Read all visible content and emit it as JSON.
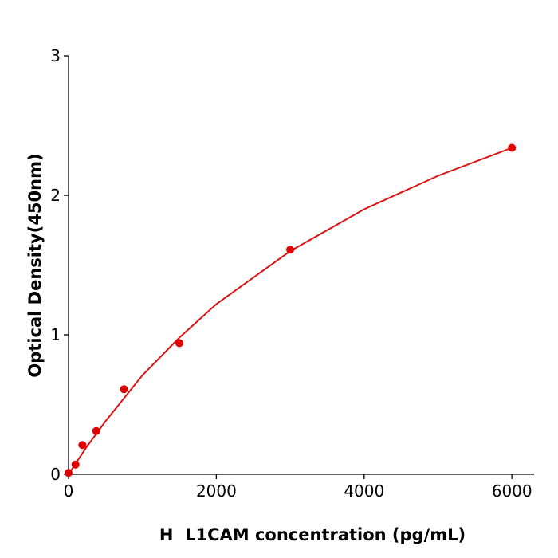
{
  "chart_data": {
    "type": "scatter",
    "xlabel": "H  L1CAM concentration (pg/mL)",
    "ylabel": "Optical Density(450nm)",
    "xlim": [
      0,
      6300
    ],
    "xticks": [
      0,
      2000,
      4000,
      6000
    ],
    "ylim": [
      0,
      3
    ],
    "yticks": [
      0,
      1,
      2,
      3
    ],
    "grid": false,
    "series": [
      {
        "type": "scatter",
        "color": "#e00000",
        "x": [
          0,
          93.75,
          187.5,
          375,
          750,
          1500,
          3000,
          6000
        ],
        "values": [
          0.01,
          0.07,
          0.21,
          0.31,
          0.61,
          0.94,
          1.61,
          2.34
        ]
      },
      {
        "type": "line",
        "color": "#d81414",
        "x": [
          0,
          250,
          500,
          1000,
          1500,
          2000,
          3000,
          4000,
          5000,
          6000
        ],
        "values": [
          0,
          0.2,
          0.38,
          0.71,
          0.98,
          1.22,
          1.6,
          1.9,
          2.14,
          2.34
        ]
      }
    ]
  }
}
